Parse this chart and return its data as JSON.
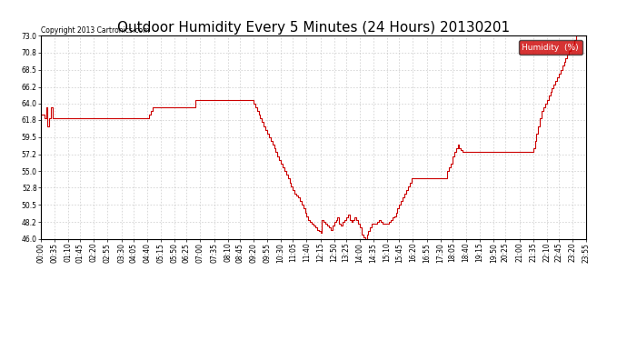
{
  "title": "Outdoor Humidity Every 5 Minutes (24 Hours) 20130201",
  "copyright": "Copyright 2013 Cartronics.com",
  "legend_label": "Humidity  (%)",
  "legend_bg": "#cc0000",
  "legend_text_color": "#ffffff",
  "line_color": "#cc0000",
  "bg_color": "#ffffff",
  "grid_color": "#bbbbbb",
  "ylim": [
    46.0,
    73.0
  ],
  "yticks": [
    46.0,
    48.2,
    50.5,
    52.8,
    55.0,
    57.2,
    59.5,
    61.8,
    64.0,
    66.2,
    68.5,
    70.8,
    73.0
  ],
  "title_fontsize": 11,
  "tick_fontsize": 5.5,
  "xtick_labels": [
    "00:00",
    "00:35",
    "01:10",
    "01:45",
    "02:20",
    "02:55",
    "03:30",
    "04:05",
    "04:40",
    "05:15",
    "05:50",
    "06:25",
    "07:00",
    "07:35",
    "08:10",
    "08:45",
    "09:20",
    "09:55",
    "10:30",
    "11:05",
    "11:40",
    "12:15",
    "12:50",
    "13:25",
    "14:00",
    "14:35",
    "15:10",
    "15:45",
    "16:20",
    "16:55",
    "17:30",
    "18:05",
    "18:40",
    "19:15",
    "19:50",
    "20:25",
    "21:00",
    "21:35",
    "22:10",
    "22:45",
    "23:20",
    "23:55"
  ],
  "humidity_data": [
    62.5,
    62.5,
    62.0,
    63.5,
    61.0,
    62.0,
    63.5,
    62.0,
    62.0,
    62.0,
    62.0,
    62.0,
    62.0,
    62.0,
    62.0,
    62.0,
    62.0,
    62.0,
    62.0,
    62.0,
    62.0,
    62.0,
    62.0,
    62.0,
    62.0,
    62.0,
    62.0,
    62.0,
    62.0,
    62.0,
    62.0,
    62.0,
    62.0,
    62.0,
    62.0,
    62.0,
    62.0,
    62.0,
    62.0,
    62.0,
    62.0,
    62.0,
    62.0,
    62.0,
    62.0,
    62.0,
    62.0,
    62.0,
    62.0,
    62.0,
    62.0,
    62.0,
    62.0,
    62.0,
    62.0,
    62.0,
    62.0,
    62.0,
    62.0,
    62.0,
    62.0,
    62.0,
    62.0,
    62.5,
    63.0,
    63.5,
    63.5,
    63.5,
    63.5,
    63.5,
    63.5,
    63.5,
    63.5,
    63.5,
    63.5,
    63.5,
    63.5,
    63.5,
    63.5,
    63.5,
    63.5,
    63.5,
    63.5,
    63.5,
    63.5,
    63.5,
    63.5,
    63.5,
    63.5,
    63.5,
    64.5,
    64.5,
    64.5,
    64.5,
    64.5,
    64.5,
    64.5,
    64.5,
    64.5,
    64.5,
    64.5,
    64.5,
    64.5,
    64.5,
    64.5,
    64.5,
    64.5,
    64.5,
    64.5,
    64.5,
    64.5,
    64.5,
    64.5,
    64.5,
    64.5,
    64.5,
    64.5,
    64.5,
    64.5,
    64.5,
    64.5,
    64.5,
    64.5,
    64.5,
    64.0,
    63.5,
    63.0,
    62.5,
    62.0,
    61.5,
    61.0,
    60.5,
    60.0,
    59.5,
    59.0,
    58.5,
    58.0,
    57.5,
    57.0,
    56.5,
    56.0,
    55.5,
    55.0,
    54.5,
    54.0,
    53.5,
    53.0,
    52.5,
    52.0,
    51.8,
    51.5,
    51.0,
    50.5,
    50.0,
    49.5,
    49.0,
    48.5,
    48.2,
    48.0,
    47.8,
    47.5,
    47.2,
    47.0,
    46.8,
    48.5,
    48.2,
    48.0,
    47.8,
    47.5,
    47.2,
    47.8,
    48.2,
    48.5,
    48.8,
    48.0,
    47.8,
    48.2,
    48.5,
    48.8,
    49.2,
    48.5,
    48.2,
    48.5,
    48.8,
    48.5,
    48.0,
    47.5,
    46.5,
    46.2,
    46.0,
    46.5,
    47.0,
    47.5,
    48.0,
    48.0,
    48.0,
    48.2,
    48.5,
    48.2,
    48.0,
    48.0,
    48.0,
    48.0,
    48.2,
    48.5,
    48.8,
    49.0,
    49.5,
    50.0,
    50.5,
    51.0,
    51.5,
    52.0,
    52.5,
    53.0,
    53.5,
    54.0,
    54.0,
    54.0,
    54.0,
    54.0,
    54.0,
    54.0,
    54.0,
    54.0,
    54.0,
    54.0,
    54.0,
    54.0,
    54.0,
    54.0,
    54.0,
    54.0,
    54.0,
    54.0,
    54.0,
    54.0,
    55.0,
    55.5,
    56.0,
    57.0,
    57.5,
    58.0,
    58.5,
    58.0,
    57.8,
    57.5,
    57.5,
    57.5,
    57.5,
    57.5,
    57.5,
    57.5,
    57.5,
    57.5,
    57.5,
    57.5,
    57.5,
    57.5,
    57.5,
    57.5,
    57.5,
    57.5,
    57.5,
    57.5,
    57.5,
    57.5,
    57.5,
    57.5,
    57.5,
    57.5,
    57.5,
    57.5,
    57.5,
    57.5,
    57.5,
    57.5,
    57.5,
    57.5,
    57.5,
    57.5,
    57.5,
    57.5,
    57.5,
    57.5,
    57.5,
    57.5,
    58.0,
    59.0,
    60.0,
    61.0,
    62.0,
    63.0,
    63.5,
    64.0,
    64.5,
    65.0,
    65.5,
    66.0,
    66.5,
    67.0,
    67.5,
    68.0,
    68.5,
    69.0,
    69.5,
    70.0,
    70.5,
    71.0,
    71.5,
    72.0,
    72.5,
    73.0,
    73.0,
    73.0,
    73.0,
    73.0,
    73.0,
    73.0
  ]
}
